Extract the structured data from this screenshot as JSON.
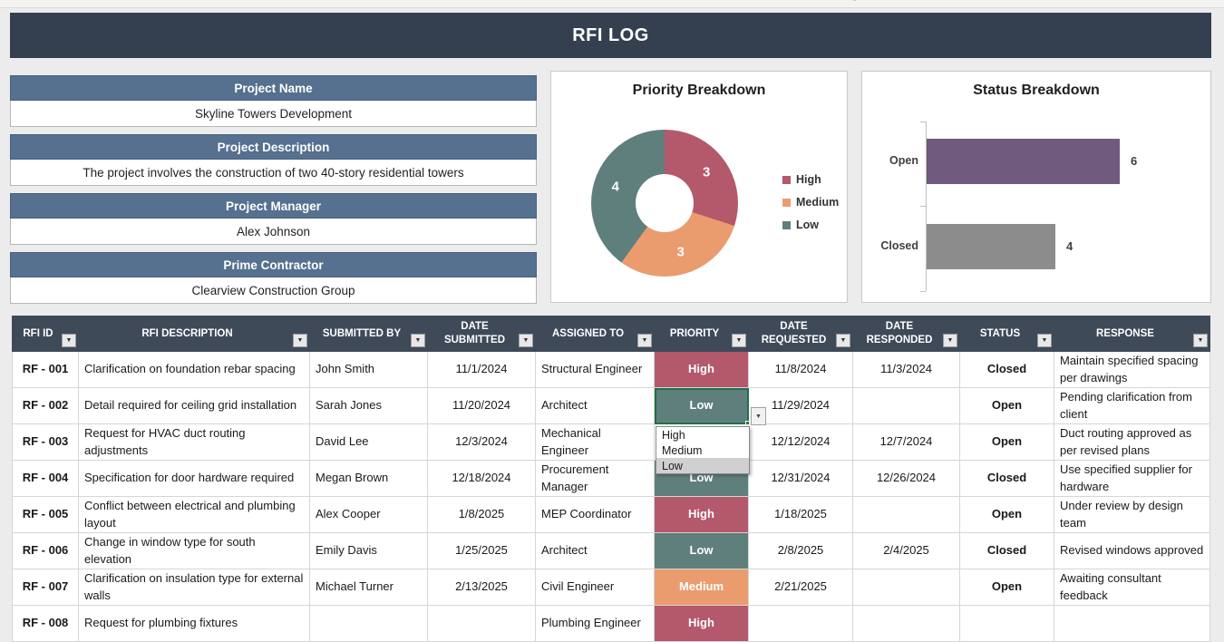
{
  "artifacts": {
    "quote_mark": "\""
  },
  "header": {
    "title": "RFI LOG"
  },
  "info_panel": [
    {
      "label": "Project Name",
      "value": "Skyline Towers Development"
    },
    {
      "label": "Project Description",
      "value": "The project involves the construction of two 40-story residential towers"
    },
    {
      "label": "Project Manager",
      "value": "Alex Johnson"
    },
    {
      "label": "Prime Contractor",
      "value": "Clearview Construction Group"
    }
  ],
  "chart_data": [
    {
      "type": "pie",
      "subtype": "donut",
      "title": "Priority Breakdown",
      "categories": [
        "High",
        "Medium",
        "Low"
      ],
      "values": [
        3,
        3,
        4
      ],
      "colors": [
        "#B4586C",
        "#EA9C6F",
        "#5F7F7D"
      ],
      "legend_position": "right",
      "data_labels": [
        "3",
        "3",
        "4"
      ]
    },
    {
      "type": "bar",
      "subtype": "horizontal",
      "title": "Status Breakdown",
      "categories": [
        "Open",
        "Closed"
      ],
      "values": [
        6,
        4
      ],
      "colors": [
        "#6F5B7E",
        "#8C8C8C"
      ],
      "data_labels": [
        "6",
        "4"
      ],
      "xlim": [
        0,
        6
      ],
      "grid": false,
      "legend_position": "none"
    }
  ],
  "priority_colors": {
    "High": "#B4586C",
    "Medium": "#EA9C6F",
    "Low": "#5F7F7D"
  },
  "table": {
    "columns": [
      {
        "label": "RFI ID"
      },
      {
        "label": "RFI DESCRIPTION"
      },
      {
        "label": "SUBMITTED BY"
      },
      {
        "label": "DATE SUBMITTED"
      },
      {
        "label": "ASSIGNED TO"
      },
      {
        "label": "PRIORITY"
      },
      {
        "label": "DATE REQUESTED"
      },
      {
        "label": "DATE RESPONDED"
      },
      {
        "label": "STATUS"
      },
      {
        "label": "RESPONSE"
      }
    ],
    "rows": [
      {
        "id": "RF - 001",
        "description": "Clarification on foundation rebar spacing",
        "submitted_by": "John Smith",
        "date_submitted": "11/1/2024",
        "assigned_to": "Structural Engineer",
        "priority": "High",
        "date_requested": "11/8/2024",
        "date_responded": "11/3/2024",
        "status": "Closed",
        "response": "Maintain specified spacing per drawings"
      },
      {
        "id": "RF - 002",
        "description": "Detail required for ceiling grid installation",
        "submitted_by": "Sarah Jones",
        "date_submitted": "11/20/2024",
        "assigned_to": "Architect",
        "priority": "Low",
        "date_requested": "11/29/2024",
        "date_responded": "",
        "status": "Open",
        "response": "Pending clarification from client",
        "selected": true
      },
      {
        "id": "RF - 003",
        "description": "Request for HVAC duct routing adjustments",
        "submitted_by": "David Lee",
        "date_submitted": "12/3/2024",
        "assigned_to": "Mechanical Engineer",
        "priority": "",
        "date_requested": "12/12/2024",
        "date_responded": "12/7/2024",
        "status": "Open",
        "response": "Duct routing approved as per revised plans"
      },
      {
        "id": "RF - 004",
        "description": "Specification for door hardware required",
        "submitted_by": "Megan Brown",
        "date_submitted": "12/18/2024",
        "assigned_to": "Procurement Manager",
        "priority": "Low",
        "date_requested": "12/31/2024",
        "date_responded": "12/26/2024",
        "status": "Closed",
        "response": "Use specified supplier for hardware"
      },
      {
        "id": "RF - 005",
        "description": "Conflict between electrical and plumbing layout",
        "submitted_by": "Alex Cooper",
        "date_submitted": "1/8/2025",
        "assigned_to": "MEP Coordinator",
        "priority": "High",
        "date_requested": "1/18/2025",
        "date_responded": "",
        "status": "Open",
        "response": "Under review by design team"
      },
      {
        "id": "RF - 006",
        "description": "Change in window type for south elevation",
        "submitted_by": "Emily Davis",
        "date_submitted": "1/25/2025",
        "assigned_to": "Architect",
        "priority": "Low",
        "date_requested": "2/8/2025",
        "date_responded": "2/4/2025",
        "status": "Closed",
        "response": "Revised windows approved"
      },
      {
        "id": "RF - 007",
        "description": "Clarification on insulation type for external walls",
        "submitted_by": "Michael Turner",
        "date_submitted": "2/13/2025",
        "assigned_to": "Civil Engineer",
        "priority": "Medium",
        "date_requested": "2/21/2025",
        "date_responded": "",
        "status": "Open",
        "response": "Awaiting consultant feedback"
      },
      {
        "id": "RF - 008",
        "description": "Request for plumbing fixtures",
        "submitted_by": "",
        "date_submitted": "",
        "assigned_to": "Plumbing Engineer",
        "priority": "High",
        "date_requested": "",
        "date_responded": "",
        "status": "",
        "response": ""
      }
    ]
  },
  "priority_dropdown": {
    "options": [
      "High",
      "Medium",
      "Low"
    ],
    "highlighted": "Low"
  }
}
